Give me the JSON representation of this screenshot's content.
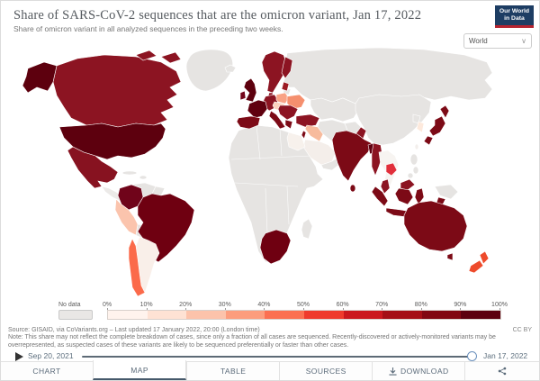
{
  "header": {
    "title": "Share of SARS-CoV-2 sequences that are the omicron variant, Jan 17, 2022",
    "subtitle": "Share of omicron variant in all analyzed sequences in the preceding two weeks.",
    "logo": {
      "line1": "Our World",
      "line2": "in Data",
      "bg_color": "#1d3d63",
      "stripe_color": "#b5232f"
    }
  },
  "controls": {
    "region_selector": {
      "value": "World"
    }
  },
  "legend": {
    "no_data_label": "No data",
    "no_data_color": "#e9e7e5",
    "tick_labels": [
      "0%",
      "10%",
      "20%",
      "30%",
      "40%",
      "50%",
      "60%",
      "70%",
      "80%",
      "90%",
      "100%"
    ],
    "segment_colors": [
      "#fff3ed",
      "#fee2d4",
      "#fcc3ab",
      "#fc9d7d",
      "#fb7051",
      "#ef3b2c",
      "#cb181d",
      "#a50f15",
      "#820711",
      "#5d000e"
    ]
  },
  "footer": {
    "source": "Source: GISAID, via CoVariants.org – Last updated 17 January 2022, 20:00 (London time)",
    "note": "Note: This share may not reflect the complete breakdown of cases, since only a fraction of all cases are sequenced. Recently-discovered or actively-monitored variants may be overrepresented, as suspected cases of these variants are likely to be sequenced preferentially or faster than other cases.",
    "license": "CC BY"
  },
  "timeline": {
    "start_label": "Sep 20, 2021",
    "end_label": "Jan 17, 2022"
  },
  "tabs": [
    {
      "label": "CHART",
      "active": false
    },
    {
      "label": "MAP",
      "active": true
    },
    {
      "label": "TABLE",
      "active": false
    },
    {
      "label": "SOURCES",
      "active": false
    },
    {
      "label": "DOWNLOAD",
      "active": false
    }
  ],
  "map": {
    "ocean_color": "#ffffff",
    "fills": {
      "greenland": "#e6e4e2",
      "canada": "#8c1422",
      "usa": "#5d000e",
      "mexico": "#871220",
      "central_america": "#eceae8",
      "caribbean": "#e6e4e2",
      "colombia": "#70041a",
      "venezuela": "#e6e4e2",
      "guyanas": "#e6e4e2",
      "brazil": "#6f0011",
      "peru": "#fbc4ad",
      "bolivia": "#e6e4e2",
      "chile": "#fb6a4a",
      "argentina": "#f9efe9",
      "iceland": "#e6e4e2",
      "uk": "#5d000e",
      "ireland": "#73051a",
      "scandinavia": "#8c1422",
      "finland": "#871220",
      "baltics": "#9c1b24",
      "denmark": "#8c1422",
      "germany_central": "#8c1422",
      "poland": "#f9a285",
      "czech_hungary": "#fcd3bf",
      "ukraine": "#f58f6e",
      "belarus": "#e6e4e2",
      "france": "#60000f",
      "iberia": "#7c0a16",
      "italy": "#7c0a16",
      "balkans": "#8c1422",
      "greece": "#7c0a16",
      "turkey": "#8c1422",
      "russia": "#e6e4e2",
      "central_asia": "#e6e4e2",
      "iran": "#e6e4e2",
      "afghanistan": "#e6e4e2",
      "pakistan": "#8c1422",
      "iraq_syria": "#f7bb9d",
      "israel": "#7c0a16",
      "saudi": "#f4eeea",
      "yemen_oman": "#e6e4e2",
      "africa": "#e6e4e2",
      "egypt": "#f7f1ec",
      "south_africa": "#6f0011",
      "madagascar": "#e6e4e2",
      "india": "#7c0a16",
      "sri_lanka": "#7c0a16",
      "bangladesh": "#600010",
      "myanmar": "#8c1422",
      "china": "#e6e4e2",
      "sea_mainland": "#f7f4f1",
      "cambodia": "#e12f3b",
      "north_korea": "#e6e4e2",
      "south_korea": "#fde9dc",
      "japan": "#7c0a16",
      "taiwan": "#f3efec",
      "philippines": "#e6e4e2",
      "malaysia": "#8c1422",
      "indonesia": "#7c0a16",
      "png": "#e6e4e2",
      "australia": "#7c0a16",
      "new_zealand": "#ee4b2c"
    }
  },
  "chart_data": {
    "type": "choropleth_map",
    "title": "Share of SARS-CoV-2 sequences that are the omicron variant",
    "date": "Jan 17, 2022",
    "unit": "% of analyzed sequences (preceding two weeks)",
    "scale": {
      "range": [
        0,
        100
      ],
      "ticks_pct": [
        0,
        10,
        20,
        30,
        40,
        50,
        60,
        70,
        80,
        90,
        100
      ],
      "no_data": "No data"
    },
    "values_pct_estimated": {
      "United States": 97,
      "Canada": 90,
      "Mexico": 88,
      "Greenland": null,
      "Colombia": 95,
      "Venezuela": null,
      "Peru": 20,
      "Brazil": 97,
      "Bolivia": null,
      "Chile": 45,
      "Argentina": 3,
      "United Kingdom": 97,
      "Ireland": 95,
      "France": 97,
      "Spain": 90,
      "Portugal": 90,
      "Germany": 88,
      "Italy": 90,
      "Norway": 88,
      "Sweden": 88,
      "Finland": 88,
      "Iceland": null,
      "Poland": 30,
      "Czechia": 15,
      "Hungary": 15,
      "Ukraine": 35,
      "Belarus": null,
      "Romania": 88,
      "Greece": 90,
      "Turkey": 88,
      "Russia": null,
      "Kazakhstan": null,
      "Iran": null,
      "Afghanistan": null,
      "Pakistan": 88,
      "Iraq": 25,
      "Syria": 25,
      "Israel": 90,
      "Saudi Arabia": 3,
      "Egypt": 5,
      "India": 90,
      "Sri Lanka": 90,
      "Bangladesh": 95,
      "Myanmar": 88,
      "China": null,
      "Thailand": 2,
      "Vietnam": 2,
      "Cambodia": 55,
      "Malaysia": 88,
      "Indonesia": 90,
      "Philippines": null,
      "Japan": 90,
      "South Korea": 10,
      "Taiwan": 4,
      "South Africa": 96,
      "Botswana": 96,
      "Madagascar": null,
      "Australia": 92,
      "New Zealand": 55,
      "Papua New Guinea": null
    }
  }
}
